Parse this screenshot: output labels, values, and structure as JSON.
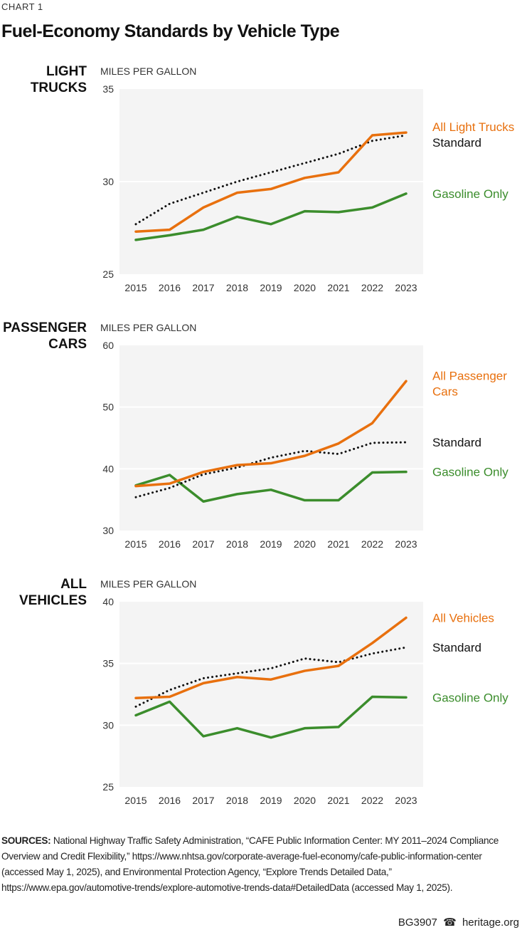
{
  "kicker": "CHART 1",
  "title": "Fuel-Economy Standards by Vehicle Type",
  "colors": {
    "all": "#e8700e",
    "standard": "#111111",
    "gasoline": "#3b8d2c",
    "plot_bg": "#f4f4f4"
  },
  "chart_data": [
    {
      "type": "line",
      "panel_title": [
        "LIGHT",
        "TRUCKS"
      ],
      "ylabel": "MILES PER GALLON",
      "ylim": [
        25,
        35
      ],
      "yticks": [
        25,
        30,
        35
      ],
      "grid": true,
      "legend_placement": "right",
      "x": [
        "2015",
        "2016",
        "2017",
        "2018",
        "2019",
        "2020",
        "2021",
        "2022",
        "2023"
      ],
      "series": [
        {
          "name": "All Light Trucks",
          "key": "all",
          "style": "solid",
          "values": [
            27.3,
            27.4,
            28.6,
            29.4,
            29.6,
            30.2,
            30.5,
            32.5,
            32.65
          ]
        },
        {
          "name": "Standard",
          "key": "standard",
          "style": "dotted",
          "values": [
            27.7,
            28.8,
            29.4,
            30.0,
            30.5,
            31.0,
            31.5,
            32.2,
            32.5
          ]
        },
        {
          "name": "Gasoline Only",
          "key": "gasoline",
          "style": "solid",
          "values": [
            26.85,
            27.1,
            27.4,
            28.1,
            27.7,
            28.4,
            28.35,
            28.6,
            29.35
          ]
        }
      ]
    },
    {
      "type": "line",
      "panel_title": [
        "PASSENGER",
        "CARS"
      ],
      "ylabel": "MILES PER GALLON",
      "ylim": [
        30,
        60
      ],
      "yticks": [
        30,
        40,
        50,
        60
      ],
      "grid": true,
      "legend_placement": "right",
      "x": [
        "2015",
        "2016",
        "2017",
        "2018",
        "2019",
        "2020",
        "2021",
        "2022",
        "2023"
      ],
      "series": [
        {
          "name": "All Passenger Cars",
          "key": "all",
          "style": "solid",
          "values": [
            37.2,
            37.6,
            39.5,
            40.6,
            40.9,
            42.1,
            44.1,
            47.4,
            54.2
          ]
        },
        {
          "name": "Standard",
          "key": "standard",
          "style": "dotted",
          "values": [
            35.4,
            36.9,
            39.1,
            40.2,
            41.8,
            42.9,
            42.4,
            44.2,
            44.3
          ]
        },
        {
          "name": "Gasoline Only",
          "key": "gasoline",
          "style": "solid",
          "values": [
            37.3,
            39.0,
            34.7,
            35.9,
            36.6,
            34.9,
            34.9,
            39.4,
            39.5
          ]
        }
      ]
    },
    {
      "type": "line",
      "panel_title": [
        "ALL",
        "VEHICLES"
      ],
      "ylabel": "MILES PER GALLON",
      "ylim": [
        25,
        40
      ],
      "yticks": [
        25,
        30,
        35,
        40
      ],
      "grid": true,
      "legend_placement": "right",
      "x": [
        "2015",
        "2016",
        "2017",
        "2018",
        "2019",
        "2020",
        "2021",
        "2022",
        "2023"
      ],
      "series": [
        {
          "name": "All Vehicles",
          "key": "all",
          "style": "solid",
          "values": [
            32.2,
            32.3,
            33.4,
            33.9,
            33.7,
            34.4,
            34.8,
            36.65,
            38.7
          ]
        },
        {
          "name": "Standard",
          "key": "standard",
          "style": "dotted",
          "values": [
            31.5,
            32.85,
            33.8,
            34.2,
            34.6,
            35.4,
            35.1,
            35.8,
            36.3
          ]
        },
        {
          "name": "Gasoline Only",
          "key": "gasoline",
          "style": "solid",
          "values": [
            30.8,
            31.9,
            29.1,
            29.75,
            29.0,
            29.75,
            29.85,
            32.3,
            32.25
          ]
        }
      ]
    }
  ],
  "sources": {
    "label": "SOURCES:",
    "text": " National Highway Traffic Safety Administration, “CAFE Public Information Center: MY 2011–2024 Compliance Overview and Credit Flexibility,” https://www.nhtsa.gov/corporate-average-fuel-economy/cafe-public-information-center (accessed May 1, 2025), and Environmental Protection Agency, “Explore Trends Detailed Data,” https://www.epa.gov/automotive-trends/explore-automotive-trends-data#DetailedData (accessed May 1, 2025)."
  },
  "footer": {
    "code": "BG3907",
    "site": "heritage.org",
    "icon": "bell-icon"
  }
}
